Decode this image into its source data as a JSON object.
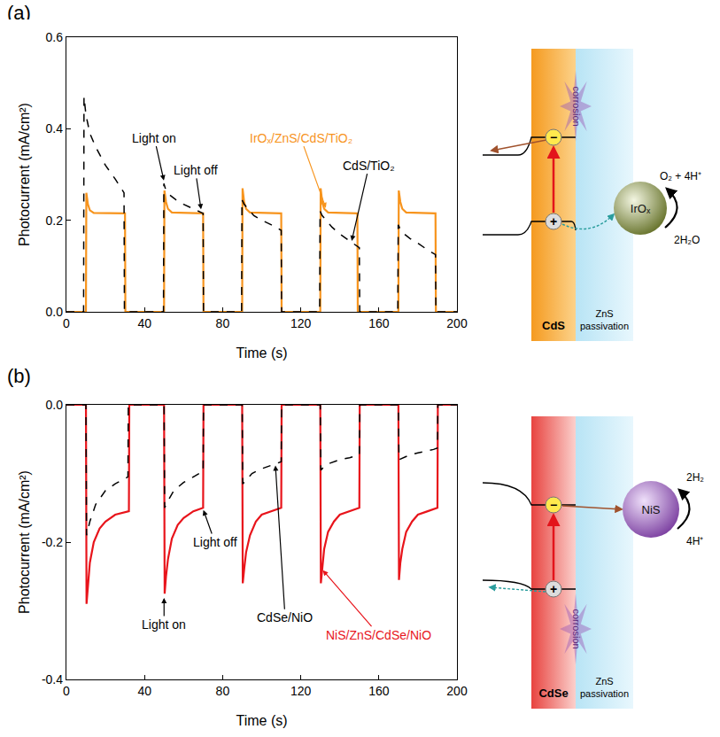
{
  "chart_data": [
    {
      "type": "line",
      "panel": "(a)",
      "x_label": "Time (s)",
      "y_label": "Photocurrent (mA/cm²)",
      "xlim": [
        0,
        200
      ],
      "xticks": [
        0,
        40,
        80,
        120,
        160,
        200
      ],
      "ylim": [
        0,
        0.6
      ],
      "yticks": [
        {
          "value": 0,
          "label": "0.0"
        },
        0.2,
        0.4,
        0.6
      ],
      "grid": false,
      "series": [
        {
          "name": "IrOₓ/ZnS/CdS/TiO₂",
          "color": "#f7941d",
          "line_style": "solid",
          "x": [
            0,
            10,
            10.2,
            11,
            12,
            14,
            30,
            30.2,
            50,
            50.2,
            51,
            52,
            54,
            70,
            70.2,
            90,
            90.2,
            91,
            92,
            94,
            110,
            110.2,
            130,
            130.2,
            131,
            132,
            134,
            149,
            149.2,
            170,
            170.2,
            171,
            172,
            174,
            189,
            189.2,
            200
          ],
          "values": [
            0,
            0,
            0.26,
            0.235,
            0.222,
            0.216,
            0.215,
            0,
            0,
            0.265,
            0.24,
            0.225,
            0.217,
            0.215,
            0,
            0,
            0.27,
            0.24,
            0.225,
            0.217,
            0.215,
            0,
            0,
            0.27,
            0.24,
            0.225,
            0.217,
            0.215,
            0,
            0,
            0.265,
            0.24,
            0.225,
            0.217,
            0.215,
            0,
            0
          ]
        },
        {
          "name": "CdS/TiO₂",
          "color": "#000000",
          "line_style": "dash",
          "x": [
            0,
            8.8,
            9,
            10,
            12,
            15,
            20,
            25,
            29.5,
            29.7,
            49.7,
            49.9,
            51,
            53,
            56,
            60,
            65,
            70,
            70.2,
            89.7,
            89.9,
            91,
            93,
            96,
            100,
            105,
            110,
            110.2,
            129.7,
            129.9,
            131,
            133,
            136,
            140,
            145,
            150,
            150.2,
            169.7,
            169.9,
            171,
            173,
            176,
            180,
            185,
            189,
            189.2,
            200
          ],
          "values": [
            0,
            0,
            0.47,
            0.43,
            0.39,
            0.36,
            0.32,
            0.29,
            0.26,
            0,
            0,
            0.28,
            0.265,
            0.255,
            0.245,
            0.235,
            0.225,
            0.215,
            0,
            0,
            0.245,
            0.235,
            0.225,
            0.21,
            0.2,
            0.19,
            0.178,
            0,
            0,
            0.22,
            0.21,
            0.2,
            0.185,
            0.17,
            0.155,
            0.14,
            0,
            0,
            0.19,
            0.18,
            0.17,
            0.16,
            0.15,
            0.135,
            0.125,
            0,
            0
          ]
        }
      ],
      "annotations": [
        {
          "text": "Light on",
          "x": 50,
          "y": 0.285,
          "text_x": 45,
          "text_y": 0.38,
          "color": "#000000"
        },
        {
          "text": "Light off",
          "x": 69,
          "y": 0.222,
          "text_x": 66,
          "text_y": 0.31,
          "color": "#000000"
        },
        {
          "text": "IrOₓ/ZnS/CdS/TiO₂",
          "x": 133,
          "y": 0.225,
          "text_x": 120,
          "text_y": 0.38,
          "color": "#f7941d"
        },
        {
          "text": "CdS/TiO₂",
          "x": 146,
          "y": 0.153,
          "text_x": 155,
          "text_y": 0.32,
          "color": "#000000"
        }
      ]
    },
    {
      "type": "line",
      "panel": "(b)",
      "x_label": "Time (s)",
      "y_label": "Photocurrent (mA/cm²)",
      "xlim": [
        0,
        200
      ],
      "xticks": [
        0,
        40,
        80,
        120,
        160,
        200
      ],
      "ylim": [
        -0.4,
        0
      ],
      "yticks": [
        -0.4,
        -0.2,
        {
          "value": 0,
          "label": "0.0"
        }
      ],
      "grid": false,
      "series": [
        {
          "name": "NiS/ZnS/CdSe/NiO",
          "color": "#e8141b",
          "line_style": "solid",
          "x": [
            0,
            10,
            10.3,
            11,
            12,
            14,
            17,
            20,
            25,
            32,
            32.2,
            50,
            50.3,
            51,
            52,
            54,
            57,
            60,
            65,
            70,
            70.2,
            90,
            90.3,
            91,
            92,
            94,
            97,
            100,
            105,
            110,
            110.2,
            130,
            130.3,
            131,
            132,
            134,
            137,
            140,
            145,
            150,
            150.2,
            170,
            170.3,
            171,
            172,
            174,
            177,
            180,
            185,
            190,
            190.2,
            200
          ],
          "values": [
            0,
            0,
            -0.29,
            -0.26,
            -0.23,
            -0.2,
            -0.18,
            -0.17,
            -0.16,
            -0.155,
            0,
            0,
            -0.275,
            -0.25,
            -0.225,
            -0.195,
            -0.175,
            -0.165,
            -0.155,
            -0.15,
            0,
            0,
            -0.26,
            -0.24,
            -0.215,
            -0.19,
            -0.17,
            -0.16,
            -0.155,
            -0.15,
            0,
            0,
            -0.26,
            -0.235,
            -0.21,
            -0.185,
            -0.17,
            -0.16,
            -0.155,
            -0.15,
            0,
            0,
            -0.255,
            -0.23,
            -0.21,
            -0.185,
            -0.17,
            -0.16,
            -0.155,
            -0.15,
            0,
            0
          ]
        },
        {
          "name": "CdSe/NiO",
          "color": "#000000",
          "line_style": "dash",
          "x": [
            0,
            10,
            10.3,
            12,
            15,
            20,
            25,
            28,
            31.5,
            31.7,
            50,
            50.3,
            52,
            55,
            60,
            65,
            68,
            70,
            70.2,
            90,
            90.3,
            92,
            95,
            100,
            105,
            108,
            110,
            110.2,
            130,
            130.3,
            132,
            135,
            140,
            145,
            148,
            150,
            150.2,
            170,
            170.3,
            172,
            175,
            180,
            185,
            188,
            190,
            190.2,
            200
          ],
          "values": [
            0,
            0,
            -0.19,
            -0.17,
            -0.145,
            -0.125,
            -0.115,
            -0.11,
            -0.105,
            0,
            0,
            -0.15,
            -0.14,
            -0.125,
            -0.113,
            -0.105,
            -0.1,
            -0.098,
            0,
            0,
            -0.115,
            -0.11,
            -0.1,
            -0.093,
            -0.088,
            -0.085,
            -0.083,
            0,
            0,
            -0.095,
            -0.09,
            -0.085,
            -0.08,
            -0.077,
            -0.075,
            -0.073,
            0,
            0,
            -0.08,
            -0.078,
            -0.074,
            -0.07,
            -0.067,
            -0.065,
            -0.063,
            0,
            0
          ]
        }
      ],
      "annotations": [
        {
          "text": "Light on",
          "x": 50,
          "y": -0.28,
          "text_x": 50,
          "text_y": -0.32,
          "color": "#000000"
        },
        {
          "text": "Light off",
          "x": 70,
          "y": -0.152,
          "text_x": 76,
          "text_y": -0.2,
          "color": "#000000"
        },
        {
          "text": "CdSe/NiO",
          "x": 107,
          "y": -0.087,
          "text_x": 112,
          "text_y": -0.31,
          "color": "#000000"
        },
        {
          "text": "NiS/ZnS/CdSe/NiO",
          "x": 131,
          "y": -0.24,
          "text_x": 160,
          "text_y": -0.335,
          "color": "#e8141b"
        }
      ]
    }
  ],
  "diagrams": [
    {
      "type": "photoanode",
      "layers": [
        "CdS",
        "ZnS passivation"
      ],
      "corrosion": "corrosion",
      "catalyst": "IrOₓ",
      "reaction_in": "2H₂O",
      "reaction_out": "O₂ + 4H⁺",
      "electron": "−",
      "hole": "+"
    },
    {
      "type": "photocathode",
      "layers": [
        "CdSe",
        "ZnS passivation"
      ],
      "corrosion": "corrosion",
      "catalyst": "NiS",
      "reaction_in": "4H⁺",
      "reaction_out": "2H₂",
      "electron": "−",
      "hole": "+"
    }
  ]
}
